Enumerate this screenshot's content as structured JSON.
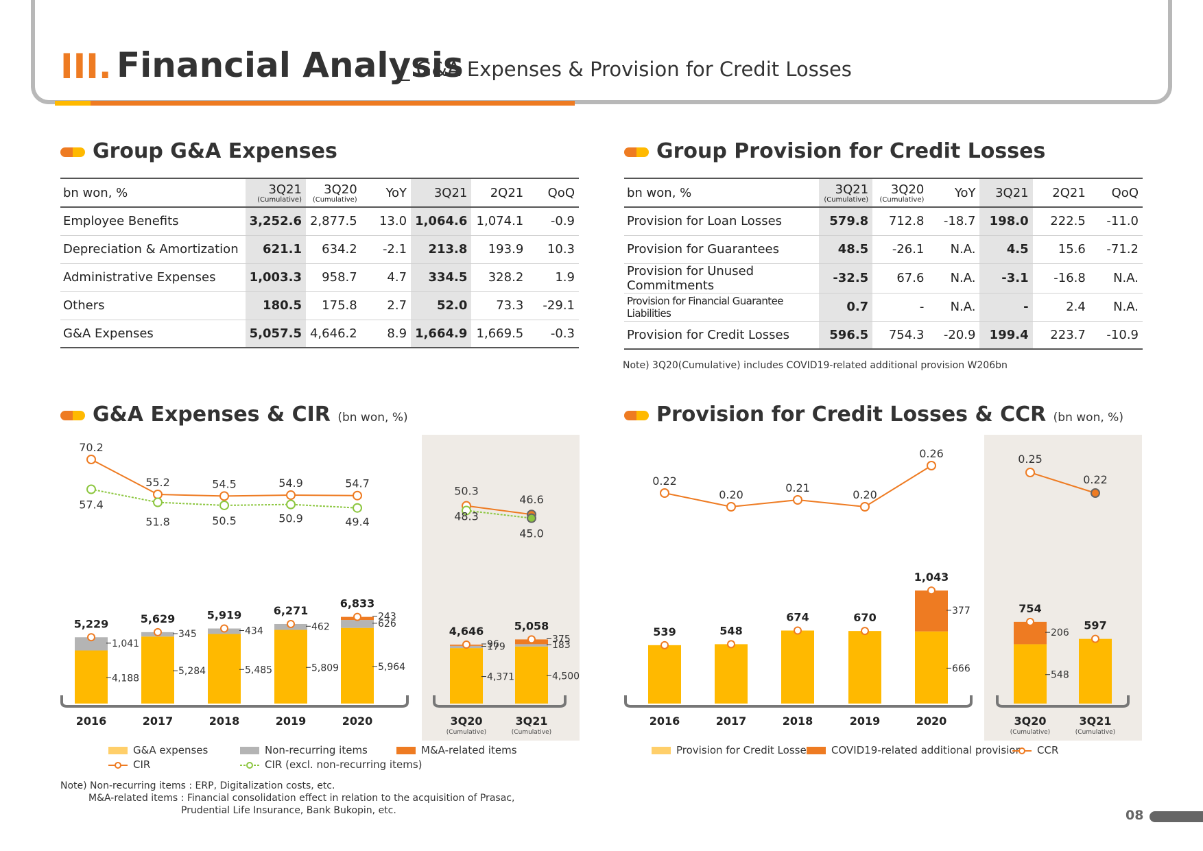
{
  "header": {
    "roman": "III.",
    "title": "Financial Analysis",
    "subtitle": "_ G&A Expenses & Provision for Credit Losses"
  },
  "ga_table": {
    "title": "Group G&A Expenses",
    "columns": [
      "bn won, %",
      "3Q21",
      "3Q20",
      "YoY",
      "3Q21",
      "2Q21",
      "QoQ"
    ],
    "cum_label": "(Cumulative)",
    "rows": [
      [
        "Employee Benefits",
        "3,252.6",
        "2,877.5",
        "13.0",
        "1,064.6",
        "1,074.1",
        "-0.9"
      ],
      [
        "Depreciation & Amortization",
        "621.1",
        "634.2",
        "-2.1",
        "213.8",
        "193.9",
        "10.3"
      ],
      [
        "Administrative Expenses",
        "1,003.3",
        "958.7",
        "4.7",
        "334.5",
        "328.2",
        "1.9"
      ],
      [
        "Others",
        "180.5",
        "175.8",
        "2.7",
        "52.0",
        "73.3",
        "-29.1"
      ],
      [
        "G&A Expenses",
        "5,057.5",
        "4,646.2",
        "8.9",
        "1,664.9",
        "1,669.5",
        "-0.3"
      ]
    ]
  },
  "pcl_table": {
    "title": "Group Provision for Credit Losses",
    "columns": [
      "bn won, %",
      "3Q21",
      "3Q20",
      "YoY",
      "3Q21",
      "2Q21",
      "QoQ"
    ],
    "cum_label": "(Cumulative)",
    "rows": [
      [
        "Provision for Loan Losses",
        "579.8",
        "712.8",
        "-18.7",
        "198.0",
        "222.5",
        "-11.0"
      ],
      [
        "Provision for Guarantees",
        "48.5",
        "-26.1",
        "N.A.",
        "4.5",
        "15.6",
        "-71.2"
      ],
      [
        "Provision for Unused Commitments",
        "-32.5",
        "67.6",
        "N.A.",
        "-3.1",
        "-16.8",
        "N.A."
      ],
      [
        "Provision for Financial Guarantee Liabilities",
        "0.7",
        "-",
        "N.A.",
        "-",
        "2.4",
        "N.A."
      ],
      [
        "Provision for Credit Losses",
        "596.5",
        "754.3",
        "-20.9",
        "199.4",
        "223.7",
        "-10.9"
      ]
    ],
    "note": "Note) 3Q20(Cumulative) includes COVID19-related additional provision W206bn"
  },
  "ga_chart_title": "G&A Expenses & CIR",
  "ga_chart_unit": "(bn won, %)",
  "pcl_chart_title": "Provision for Credit Losses & CCR",
  "pcl_chart_unit": "(bn won, %)",
  "chart_data": [
    {
      "type": "bar",
      "title": "G&A Expenses & CIR",
      "categories": [
        "2016",
        "2017",
        "2018",
        "2019",
        "2020",
        "3Q20",
        "3Q21"
      ],
      "category_sublabels": [
        "",
        "",
        "",
        "",
        "",
        "(Cumulative)",
        "(Cumulative)"
      ],
      "stacked": true,
      "series": [
        {
          "name": "G&A expenses",
          "values": [
            4188,
            5284,
            5485,
            5809,
            5964,
            4371,
            4500
          ],
          "labels": [
            "4,188",
            "5,284",
            "5,485",
            "5,809",
            "5,964",
            "4,371",
            "4,500"
          ],
          "color": "#ffb900"
        },
        {
          "name": "Non-recurring items",
          "values": [
            1041,
            345,
            434,
            462,
            626,
            179,
            183
          ],
          "labels": [
            "1,041",
            "345",
            "434",
            "462",
            "626",
            "179",
            "183"
          ],
          "color": "#b4b4b4"
        },
        {
          "name": "M&A-related items",
          "values": [
            0,
            0,
            0,
            0,
            243,
            96,
            375
          ],
          "labels": [
            "",
            "",
            "",
            "",
            "243",
            "96",
            "375"
          ],
          "color": "#ee7b22"
        }
      ],
      "totals": [
        5229,
        5629,
        5919,
        6271,
        6833,
        4646,
        5058
      ],
      "total_labels": [
        "5,229",
        "5,629",
        "5,919",
        "6,271",
        "6,833",
        "4,646",
        "5,058"
      ],
      "lines": [
        {
          "name": "CIR",
          "values": [
            70.2,
            55.2,
            54.5,
            54.9,
            54.7,
            50.3,
            46.6
          ],
          "labels": [
            "70.2",
            "55.2",
            "54.5",
            "54.9",
            "54.7",
            "50.3",
            "46.6"
          ],
          "color": "#ee7b22"
        },
        {
          "name": "CIR (excl. non-recurring items)",
          "values": [
            57.4,
            51.8,
            50.5,
            50.9,
            49.4,
            48.3,
            45.0
          ],
          "labels": [
            "57.4",
            "51.8",
            "50.5",
            "50.9",
            "49.4",
            "48.3",
            "45.0"
          ],
          "color": "#8cc63f"
        }
      ],
      "highlight_group": [
        "3Q20",
        "3Q21"
      ]
    },
    {
      "type": "bar",
      "title": "Provision for Credit Losses & CCR",
      "categories": [
        "2016",
        "2017",
        "2018",
        "2019",
        "2020",
        "3Q20",
        "3Q21"
      ],
      "category_sublabels": [
        "",
        "",
        "",
        "",
        "",
        "(Cumulative)",
        "(Cumulative)"
      ],
      "stacked": true,
      "series": [
        {
          "name": "Provision for Credit Losses",
          "values": [
            539,
            548,
            674,
            670,
            666,
            548,
            597
          ],
          "labels": [
            "",
            "",
            "",
            "",
            "666",
            "548",
            ""
          ],
          "color": "#ffb900"
        },
        {
          "name": "COVID19-related additional provision",
          "values": [
            0,
            0,
            0,
            0,
            377,
            206,
            0
          ],
          "labels": [
            "",
            "",
            "",
            "",
            "377",
            "206",
            ""
          ],
          "color": "#ee7b22"
        }
      ],
      "totals": [
        539,
        548,
        674,
        670,
        1043,
        754,
        597
      ],
      "total_labels": [
        "539",
        "548",
        "674",
        "670",
        "1,043",
        "754",
        "597"
      ],
      "lines": [
        {
          "name": "CCR",
          "values": [
            0.22,
            0.2,
            0.21,
            0.2,
            0.26,
            0.25,
            0.22
          ],
          "labels": [
            "0.22",
            "0.20",
            "0.21",
            "0.20",
            "0.26",
            "0.25",
            "0.22"
          ],
          "color": "#ee7b22"
        }
      ],
      "highlight_group": [
        "3Q20",
        "3Q21"
      ]
    }
  ],
  "legend_ga": {
    "ga": "G&A expenses",
    "nonrec": "Non-recurring items",
    "ma": "M&A-related items",
    "cir": "CIR",
    "cir_excl": "CIR (excl. non-recurring items)"
  },
  "legend_pcl": {
    "pcl": "Provision for Credit Losses",
    "covid": "COVID19-related additional provision",
    "ccr": "CCR"
  },
  "notes": {
    "line1": "Note) Non-recurring items : ERP, Digitalization costs, etc.",
    "line2": "M&A-related items : Financial consolidation effect in relation to the acquisition of Prasac,",
    "line3": "Prudential Life Insurance, Bank Bukopin, etc."
  },
  "page_number": "08"
}
